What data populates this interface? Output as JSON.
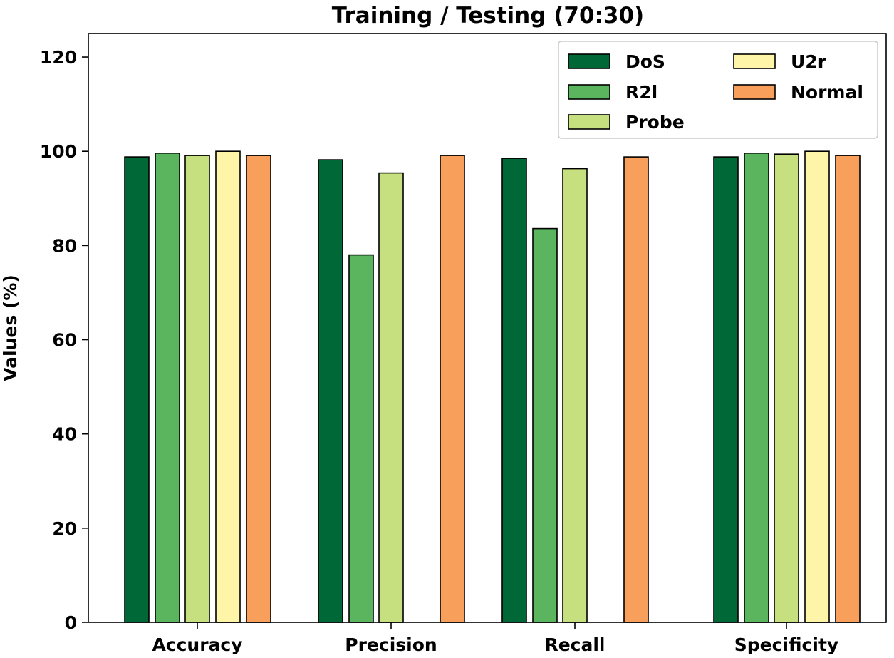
{
  "chart_data": {
    "type": "bar",
    "title": "Training / Testing (70:30)",
    "xlabel": "",
    "ylabel": "Values (%)",
    "ylim": [
      0,
      125
    ],
    "yticks": [
      0,
      20,
      40,
      60,
      80,
      100,
      120
    ],
    "categories": [
      "Accuracy",
      "Precision",
      "Recall",
      "Specificity"
    ],
    "series": [
      {
        "name": "DoS",
        "color": "#006837",
        "values": [
          98.8,
          98.2,
          98.5,
          98.8
        ]
      },
      {
        "name": "R2l",
        "color": "#5ab55e",
        "values": [
          99.6,
          78.0,
          83.6,
          99.6
        ]
      },
      {
        "name": "Probe",
        "color": "#c6e07f",
        "values": [
          99.1,
          95.4,
          96.3,
          99.4
        ]
      },
      {
        "name": "U2r",
        "color": "#fef5a8",
        "values": [
          100.0,
          null,
          null,
          100.0
        ]
      },
      {
        "name": "Normal",
        "color": "#f89f5c",
        "values": [
          99.1,
          99.1,
          98.8,
          99.1
        ]
      }
    ],
    "grid": false,
    "legend": {
      "placement": "top-right",
      "columns": 2
    }
  }
}
